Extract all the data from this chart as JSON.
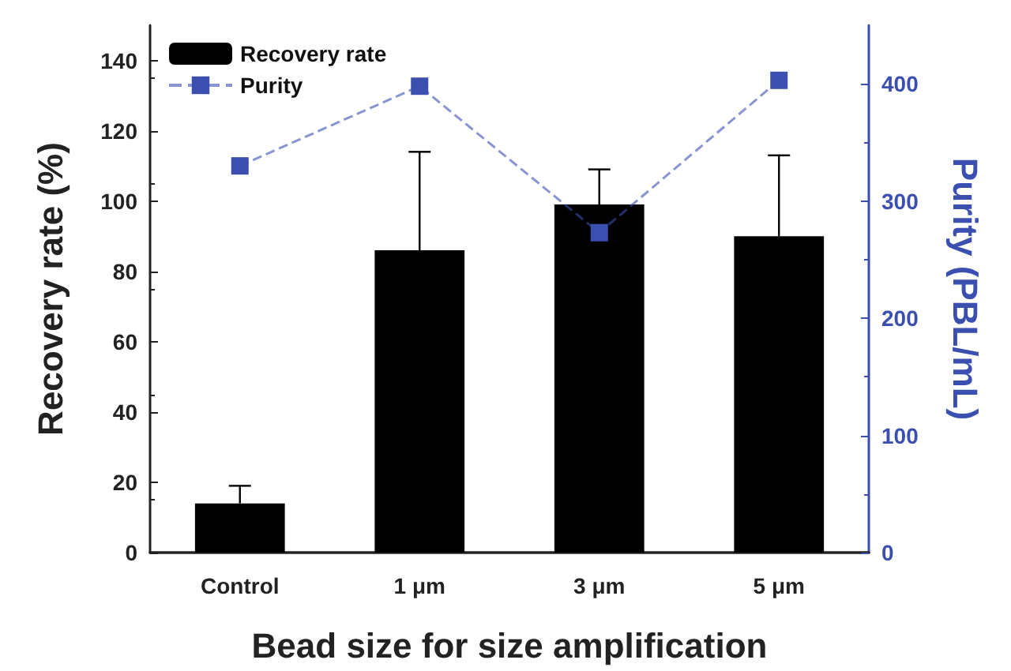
{
  "chart_data": {
    "type": "bar",
    "xlabel": "Bead size for size amplification",
    "ylabel": "Recovery rate (%)",
    "y2label": "Purity (PBL/mL)",
    "categories": [
      "Control",
      "1 μm",
      "3 μm",
      "5 μm"
    ],
    "series": [
      {
        "name": "Recovery rate",
        "color": "#000000",
        "values": [
          14,
          86,
          99,
          90
        ],
        "errors": [
          [
            14,
            19
          ],
          [
            86,
            114
          ],
          [
            99,
            109
          ],
          [
            90,
            113
          ]
        ]
      },
      {
        "name": "Purity",
        "type": "line",
        "axis": "y2",
        "color": "#3b4fb0",
        "values": [
          330,
          398,
          273,
          403
        ],
        "marker": "square",
        "line_style": "dashed"
      }
    ],
    "ylim": [
      0,
      150
    ],
    "yticks": [
      0,
      20,
      40,
      60,
      80,
      100,
      120,
      140
    ],
    "y2lim": [
      0,
      450
    ],
    "y2ticks": [
      0,
      100,
      200,
      300,
      400
    ],
    "grid": false,
    "legend": "top left"
  }
}
